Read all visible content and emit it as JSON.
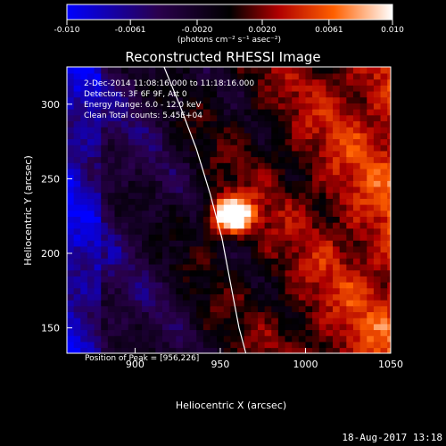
{
  "chart_data": {
    "type": "heatmap",
    "title": "Reconstructed RHESSI Image",
    "xlabel": "Heliocentric X (arcsec)",
    "ylabel": "Heliocentric Y (arcsec)",
    "xlim": [
      860,
      1050
    ],
    "ylim": [
      133,
      325
    ],
    "x_ticks": [
      900,
      950,
      1000,
      1050
    ],
    "y_ticks": [
      150,
      200,
      250,
      300
    ],
    "colorbar": {
      "range": [
        -0.01,
        0.01
      ],
      "tick_values": [
        -0.01,
        -0.0061,
        -0.002,
        0.002,
        0.0061,
        0.01
      ],
      "tick_labels": [
        "-0.010",
        "-0.0061",
        "-0.0020",
        "0.0020",
        "0.0061",
        "0.010"
      ],
      "label": "(photons cm⁻² s⁻¹ asec⁻²)",
      "colors": [
        "#0000ff",
        "#2a004d",
        "#000000",
        "#b00000",
        "#ff6000",
        "#ffffff"
      ]
    },
    "info_lines": [
      "2-Dec-2014 11:08:16.000 to 11:18:16.000",
      "Detectors: 3F 6F 9F, Att 0",
      "Energy Range: 6.0 - 12.0 keV",
      "Clean    Total counts: 5.45E+04"
    ],
    "peak": {
      "x": 956,
      "y": 226,
      "label": "Position of Peak = [956,226]"
    },
    "source_sigma_arcsec": 9,
    "limb_curve": [
      [
        917,
        325
      ],
      [
        926,
        300
      ],
      [
        936,
        270
      ],
      [
        944,
        240
      ],
      [
        951,
        210
      ],
      [
        956,
        180
      ],
      [
        961,
        150
      ],
      [
        965,
        133
      ]
    ],
    "grid": "off"
  },
  "timestamp": "18-Aug-2017 13:18"
}
